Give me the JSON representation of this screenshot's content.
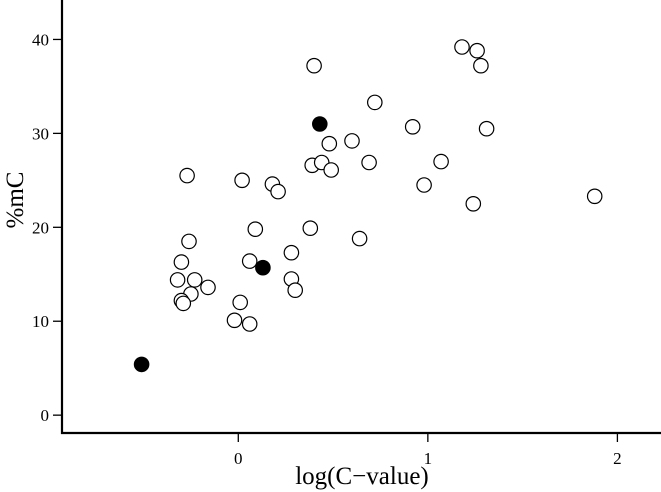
{
  "chart_data": {
    "type": "scatter",
    "title": "",
    "xlabel": "log(C−value)",
    "ylabel": "%mC",
    "xlim": [
      -0.93,
      2.23
    ],
    "ylim": [
      -1.9,
      44.2
    ],
    "xticks": [
      0,
      1,
      2
    ],
    "yticks": [
      0,
      10,
      20,
      30,
      40
    ],
    "grid": false,
    "legend": "none",
    "colors": {
      "axis": "#000000",
      "open_marker_fill": "#ffffff",
      "filled_marker": "#000000"
    },
    "series": [
      {
        "marker": "open-circle",
        "points": [
          [
            -0.3,
            16.3
          ],
          [
            -0.32,
            14.4
          ],
          [
            -0.23,
            14.4
          ],
          [
            -0.16,
            13.6
          ],
          [
            -0.25,
            12.9
          ],
          [
            -0.3,
            12.2
          ],
          [
            -0.29,
            11.9
          ],
          [
            -0.26,
            18.5
          ],
          [
            -0.27,
            25.5
          ],
          [
            0.01,
            12.0
          ],
          [
            -0.02,
            10.1
          ],
          [
            0.06,
            9.7
          ],
          [
            0.06,
            16.4
          ],
          [
            0.09,
            19.8
          ],
          [
            0.02,
            25.0
          ],
          [
            0.18,
            24.6
          ],
          [
            0.21,
            23.8
          ],
          [
            0.28,
            17.3
          ],
          [
            0.28,
            14.5
          ],
          [
            0.3,
            13.3
          ],
          [
            0.38,
            19.9
          ],
          [
            0.39,
            26.6
          ],
          [
            0.44,
            26.9
          ],
          [
            0.48,
            28.9
          ],
          [
            0.49,
            26.1
          ],
          [
            0.4,
            37.2
          ],
          [
            0.6,
            29.2
          ],
          [
            0.64,
            18.8
          ],
          [
            0.69,
            26.9
          ],
          [
            0.72,
            33.3
          ],
          [
            0.92,
            30.7
          ],
          [
            0.98,
            24.5
          ],
          [
            1.07,
            27.0
          ],
          [
            1.18,
            39.2
          ],
          [
            1.26,
            38.8
          ],
          [
            1.28,
            37.2
          ],
          [
            1.31,
            30.5
          ],
          [
            1.24,
            22.5
          ],
          [
            1.88,
            23.3
          ]
        ]
      },
      {
        "marker": "filled-circle",
        "points": [
          [
            -0.51,
            5.4
          ],
          [
            0.13,
            15.7
          ],
          [
            0.43,
            31.0
          ]
        ]
      }
    ]
  }
}
